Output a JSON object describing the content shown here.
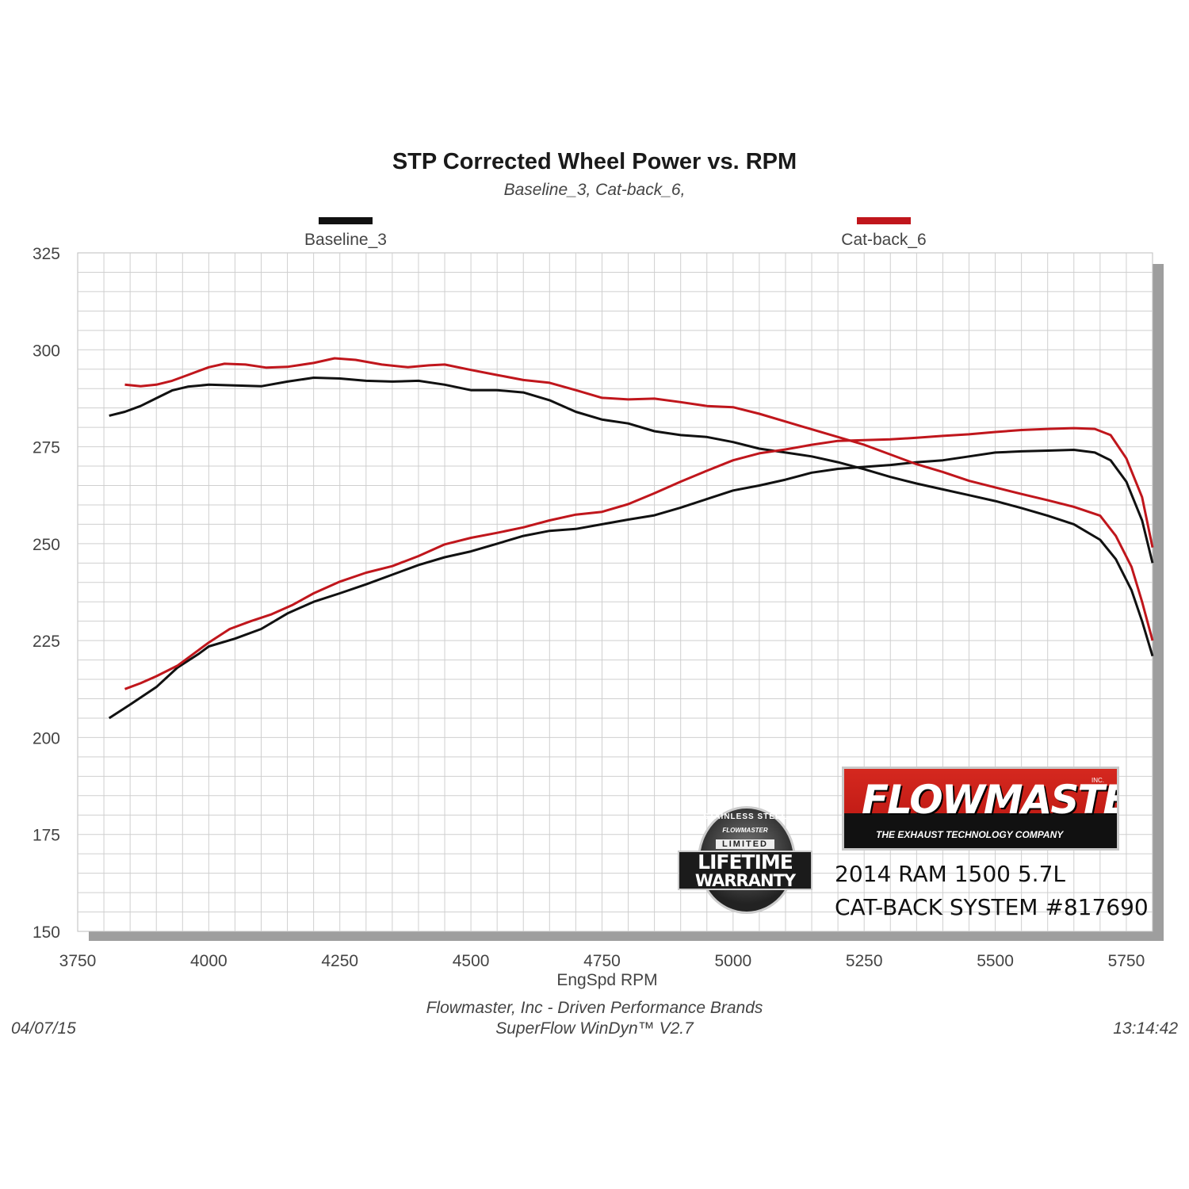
{
  "header": {
    "title": "STP Corrected Wheel Power vs. RPM",
    "subtitle": "Baseline_3, Cat-back_6,"
  },
  "legend": [
    {
      "label": "Baseline_3",
      "color": "#111111"
    },
    {
      "label": "Cat-back_6",
      "color": "#c0161c"
    }
  ],
  "footer": {
    "line1": "Flowmaster, Inc - Driven Performance Brands",
    "line2": "SuperFlow WinDyn™ V2.7",
    "date": "04/07/15",
    "time": "13:14:42"
  },
  "brand": {
    "name": "FLOWMASTER",
    "tagline": "THE EXHAUST TECHNOLOGY COMPANY",
    "product_line1": "2014 RAM 1500 5.7L",
    "product_line2": "CAT-BACK SYSTEM #817690",
    "badge_ring": "STAINLESS STEEL",
    "badge_logo": "FLOWMASTER",
    "badge_limited": "LIMITED",
    "badge_line1": "LIFETIME",
    "badge_line2": "WARRANTY"
  },
  "colors": {
    "baseline": "#111111",
    "catback": "#c0161c",
    "grid": "#cfcfcf",
    "frame_shadow": "#9e9e9e",
    "brand_red": "#d5281f"
  },
  "chart_data": {
    "type": "line",
    "title": "STP Corrected Wheel Power vs. RPM",
    "subtitle": "Baseline_3, Cat-back_6,",
    "xlabel": "EngSpd RPM",
    "ylabel": "",
    "xlim": [
      3750,
      5800
    ],
    "ylim": [
      150,
      325
    ],
    "xticks": [
      3750,
      4000,
      4250,
      4500,
      4750,
      5000,
      5250,
      5500,
      5750
    ],
    "yticks": [
      150,
      175,
      200,
      225,
      250,
      275,
      300,
      325
    ],
    "grid": true,
    "legend_position": "top",
    "series": [
      {
        "name": "Baseline_3",
        "color": "#111111",
        "curves": [
          {
            "points": [
              [
                3810,
                283
              ],
              [
                3840,
                284
              ],
              [
                3870,
                285.5
              ],
              [
                3900,
                287.5
              ],
              [
                3930,
                289.5
              ],
              [
                3960,
                290.5
              ],
              [
                4000,
                291
              ],
              [
                4050,
                290.8
              ],
              [
                4100,
                290.6
              ],
              [
                4150,
                291.8
              ],
              [
                4200,
                292.8
              ],
              [
                4250,
                292.6
              ],
              [
                4300,
                292
              ],
              [
                4350,
                291.8
              ],
              [
                4400,
                292
              ],
              [
                4450,
                291
              ],
              [
                4500,
                289.6
              ],
              [
                4550,
                289.6
              ],
              [
                4600,
                289
              ],
              [
                4650,
                287
              ],
              [
                4700,
                284
              ],
              [
                4750,
                282
              ],
              [
                4800,
                281
              ],
              [
                4850,
                279
              ],
              [
                4900,
                278
              ],
              [
                4950,
                277.5
              ],
              [
                5000,
                276.2
              ],
              [
                5050,
                274.5
              ],
              [
                5100,
                273.5
              ],
              [
                5150,
                272.5
              ],
              [
                5200,
                271
              ],
              [
                5250,
                269.2
              ],
              [
                5300,
                267.2
              ],
              [
                5350,
                265.5
              ],
              [
                5400,
                264
              ],
              [
                5450,
                262.5
              ],
              [
                5500,
                261
              ],
              [
                5550,
                259.2
              ],
              [
                5600,
                257.2
              ],
              [
                5650,
                255
              ],
              [
                5700,
                251
              ],
              [
                5730,
                246
              ],
              [
                5760,
                238
              ],
              [
                5780,
                230
              ],
              [
                5800,
                221
              ]
            ]
          },
          {
            "points": [
              [
                3810,
                205
              ],
              [
                3850,
                208.5
              ],
              [
                3900,
                213
              ],
              [
                3940,
                218
              ],
              [
                3980,
                221.5
              ],
              [
                4000,
                223.5
              ],
              [
                4050,
                225.5
              ],
              [
                4100,
                228
              ],
              [
                4150,
                232
              ],
              [
                4200,
                235
              ],
              [
                4250,
                237.2
              ],
              [
                4300,
                239.5
              ],
              [
                4350,
                242
              ],
              [
                4400,
                244.5
              ],
              [
                4450,
                246.5
              ],
              [
                4500,
                248
              ],
              [
                4550,
                250
              ],
              [
                4600,
                252
              ],
              [
                4650,
                253.3
              ],
              [
                4700,
                253.8
              ],
              [
                4750,
                255
              ],
              [
                4800,
                256.2
              ],
              [
                4850,
                257.3
              ],
              [
                4900,
                259.3
              ],
              [
                4950,
                261.5
              ],
              [
                5000,
                263.7
              ],
              [
                5050,
                265
              ],
              [
                5100,
                266.5
              ],
              [
                5150,
                268.3
              ],
              [
                5200,
                269.3
              ],
              [
                5250,
                269.8
              ],
              [
                5300,
                270.3
              ],
              [
                5350,
                271
              ],
              [
                5400,
                271.5
              ],
              [
                5450,
                272.5
              ],
              [
                5500,
                273.5
              ],
              [
                5550,
                273.8
              ],
              [
                5600,
                274
              ],
              [
                5650,
                274.2
              ],
              [
                5690,
                273.5
              ],
              [
                5720,
                271.5
              ],
              [
                5750,
                266
              ],
              [
                5780,
                256
              ],
              [
                5800,
                245
              ]
            ]
          }
        ]
      },
      {
        "name": "Cat-back_6",
        "color": "#c0161c",
        "curves": [
          {
            "points": [
              [
                3840,
                291
              ],
              [
                3870,
                290.6
              ],
              [
                3900,
                291
              ],
              [
                3930,
                292
              ],
              [
                3960,
                293.5
              ],
              [
                4000,
                295.5
              ],
              [
                4030,
                296.4
              ],
              [
                4070,
                296.2
              ],
              [
                4110,
                295.4
              ],
              [
                4150,
                295.6
              ],
              [
                4200,
                296.6
              ],
              [
                4240,
                297.8
              ],
              [
                4280,
                297.4
              ],
              [
                4330,
                296.2
              ],
              [
                4380,
                295.5
              ],
              [
                4420,
                296
              ],
              [
                4450,
                296.2
              ],
              [
                4500,
                294.8
              ],
              [
                4550,
                293.5
              ],
              [
                4600,
                292.2
              ],
              [
                4650,
                291.5
              ],
              [
                4700,
                289.6
              ],
              [
                4750,
                287.6
              ],
              [
                4800,
                287.2
              ],
              [
                4850,
                287.4
              ],
              [
                4900,
                286.5
              ],
              [
                4950,
                285.5
              ],
              [
                5000,
                285.2
              ],
              [
                5050,
                283.5
              ],
              [
                5100,
                281.5
              ],
              [
                5150,
                279.5
              ],
              [
                5200,
                277.5
              ],
              [
                5250,
                275.5
              ],
              [
                5300,
                273
              ],
              [
                5350,
                270.5
              ],
              [
                5400,
                268.5
              ],
              [
                5450,
                266.2
              ],
              [
                5500,
                264.5
              ],
              [
                5550,
                262.8
              ],
              [
                5600,
                261.2
              ],
              [
                5650,
                259.5
              ],
              [
                5700,
                257.2
              ],
              [
                5730,
                252
              ],
              [
                5760,
                244
              ],
              [
                5780,
                235
              ],
              [
                5800,
                225
              ]
            ]
          },
          {
            "points": [
              [
                3840,
                212.5
              ],
              [
                3870,
                214
              ],
              [
                3900,
                215.8
              ],
              [
                3940,
                218.5
              ],
              [
                3980,
                222.5
              ],
              [
                4000,
                224.5
              ],
              [
                4040,
                228
              ],
              [
                4080,
                230
              ],
              [
                4120,
                231.8
              ],
              [
                4160,
                234.2
              ],
              [
                4200,
                237.2
              ],
              [
                4250,
                240.2
              ],
              [
                4300,
                242.5
              ],
              [
                4350,
                244.2
              ],
              [
                4400,
                246.8
              ],
              [
                4450,
                249.8
              ],
              [
                4500,
                251.5
              ],
              [
                4550,
                252.8
              ],
              [
                4600,
                254.2
              ],
              [
                4650,
                256
              ],
              [
                4700,
                257.5
              ],
              [
                4750,
                258.2
              ],
              [
                4800,
                260.2
              ],
              [
                4850,
                263
              ],
              [
                4900,
                266
              ],
              [
                4950,
                268.8
              ],
              [
                5000,
                271.5
              ],
              [
                5050,
                273.3
              ],
              [
                5100,
                274.3
              ],
              [
                5150,
                275.5
              ],
              [
                5200,
                276.5
              ],
              [
                5250,
                276.7
              ],
              [
                5300,
                276.9
              ],
              [
                5350,
                277.3
              ],
              [
                5400,
                277.8
              ],
              [
                5450,
                278.2
              ],
              [
                5500,
                278.8
              ],
              [
                5550,
                279.3
              ],
              [
                5600,
                279.6
              ],
              [
                5650,
                279.8
              ],
              [
                5690,
                279.6
              ],
              [
                5720,
                278
              ],
              [
                5750,
                272
              ],
              [
                5780,
                262
              ],
              [
                5800,
                249
              ]
            ]
          }
        ]
      }
    ]
  }
}
